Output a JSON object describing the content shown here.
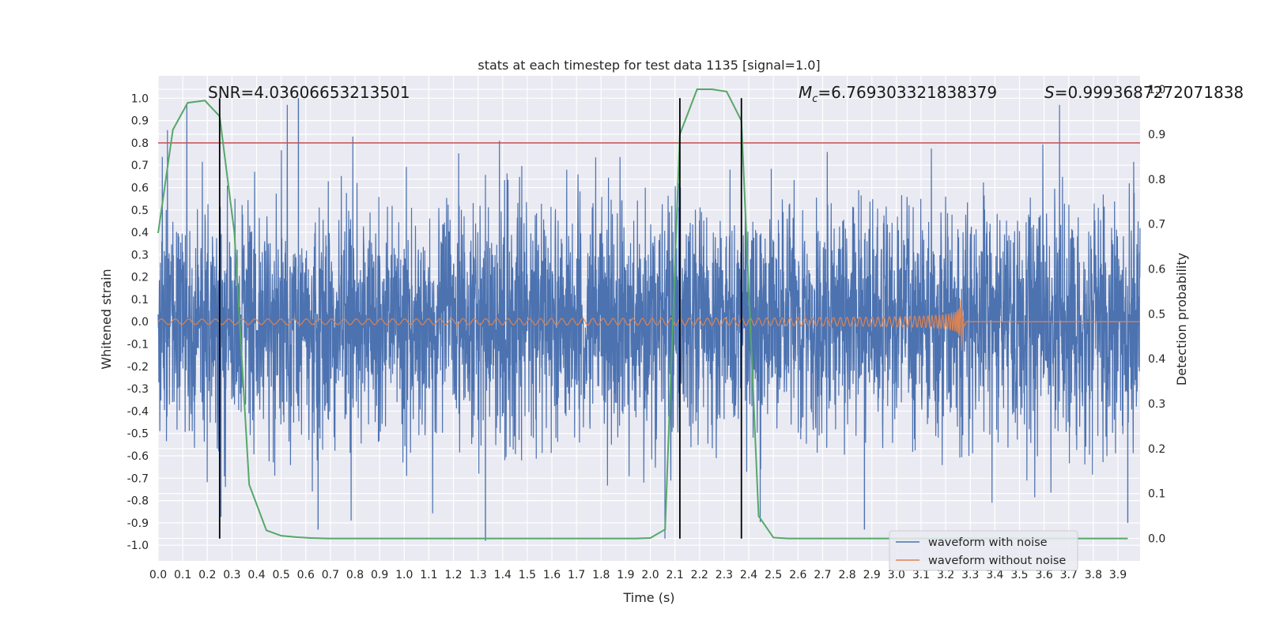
{
  "chart_data": {
    "type": "line",
    "title": "stats at each timestep for test data 1135 [signal=1.0]",
    "xlabel": "Time (s)",
    "ylabel": "Whitened strain",
    "y2label": "Detection probability",
    "xlim": [
      0.0,
      3.99
    ],
    "ylim": [
      -1.07,
      1.1
    ],
    "y2lim": [
      -0.05,
      1.03
    ],
    "xticks": [
      "0.0",
      "0.1",
      "0.2",
      "0.3",
      "0.4",
      "0.5",
      "0.6",
      "0.7",
      "0.8",
      "0.9",
      "1.0",
      "1.1",
      "1.2",
      "1.3",
      "1.4",
      "1.5",
      "1.6",
      "1.7",
      "1.8",
      "1.9",
      "2.0",
      "2.1",
      "2.2",
      "2.3",
      "2.4",
      "2.5",
      "2.6",
      "2.7",
      "2.8",
      "2.9",
      "3.0",
      "3.1",
      "3.2",
      "3.3",
      "3.4",
      "3.5",
      "3.6",
      "3.7",
      "3.8",
      "3.9"
    ],
    "yticks": [
      "-1.0",
      "-0.9",
      "-0.8",
      "-0.7",
      "-0.6",
      "-0.5",
      "-0.4",
      "-0.3",
      "-0.2",
      "-0.1",
      "0.0",
      "0.1",
      "0.2",
      "0.3",
      "0.4",
      "0.5",
      "0.6",
      "0.7",
      "0.8",
      "0.9",
      "1.0"
    ],
    "y2ticks": [
      "0.0",
      "0.1",
      "0.2",
      "0.3",
      "0.4",
      "0.5",
      "0.6",
      "0.7",
      "0.8",
      "0.9",
      "1.0"
    ],
    "grid": true,
    "legend_position": "bottom-right",
    "annotations": {
      "snr": "SNR=4.03606653213501",
      "mc_symbol": "M",
      "mc_sub": "c",
      "mc_value": "=6.769303321838379",
      "s_symbol": "S",
      "s_value": "=0.9993687272071838"
    },
    "threshold_line": {
      "axis": "y",
      "value": 0.8,
      "color": "#c44e52"
    },
    "vertical_lines": [
      0.25,
      2.12,
      2.37
    ],
    "series": [
      {
        "name": "waveform with noise",
        "color": "#4c72b0",
        "axis": "left",
        "description_of_values": "noise-like whitened strain",
        "approx_range": [
          -0.98,
          1.0
        ],
        "notable_peaks": [
          [
            0.57,
            1.0
          ],
          [
            1.33,
            -0.98
          ],
          [
            0.65,
            -0.93
          ],
          [
            2.87,
            -0.93
          ],
          [
            3.94,
            -0.9
          ]
        ]
      },
      {
        "name": "waveform without noise",
        "color": "#dd8452",
        "axis": "left",
        "chirp_end": 3.26,
        "amplitude_start": 0.012,
        "amplitude_end": 0.16
      },
      {
        "color": "#55a868",
        "axis": "right",
        "x": [
          0.0,
          0.06,
          0.12,
          0.19,
          0.25,
          0.31,
          0.37,
          0.44,
          0.5,
          0.56,
          0.62,
          0.69,
          0.75,
          0.81,
          0.87,
          0.94,
          1.0,
          1.06,
          1.12,
          1.19,
          1.25,
          1.31,
          1.37,
          1.44,
          1.5,
          1.56,
          1.62,
          1.69,
          1.75,
          1.81,
          1.87,
          1.94,
          2.0,
          2.06,
          2.12,
          2.19,
          2.25,
          2.31,
          2.37,
          2.44,
          2.5,
          2.56,
          2.62,
          2.69,
          2.75,
          2.81,
          2.87,
          2.94,
          3.0,
          3.06,
          3.12,
          3.19,
          3.25,
          3.31,
          3.37,
          3.44,
          3.5,
          3.56,
          3.62,
          3.69,
          3.75,
          3.81,
          3.87,
          3.94
        ],
        "values": [
          0.68,
          0.91,
          0.97,
          0.975,
          0.94,
          0.68,
          0.12,
          0.018,
          0.006,
          0.003,
          0.001,
          0.0,
          0.0,
          0.0,
          0.0,
          0.0,
          0.0,
          0.0,
          0.0,
          0.0,
          0.0,
          0.0,
          0.0,
          0.0,
          0.0,
          0.0,
          0.0,
          0.0,
          0.0,
          0.0,
          0.0,
          0.0,
          0.001,
          0.02,
          0.9,
          1.0,
          1.0,
          0.995,
          0.93,
          0.05,
          0.002,
          0.0,
          0.0,
          0.0,
          0.0,
          0.0,
          0.0,
          0.0,
          0.0,
          0.0,
          0.0,
          0.0,
          0.0,
          0.0,
          0.0,
          0.0,
          0.0,
          0.0,
          0.0,
          0.0,
          0.0,
          0.0,
          0.0,
          0.0
        ]
      }
    ]
  }
}
